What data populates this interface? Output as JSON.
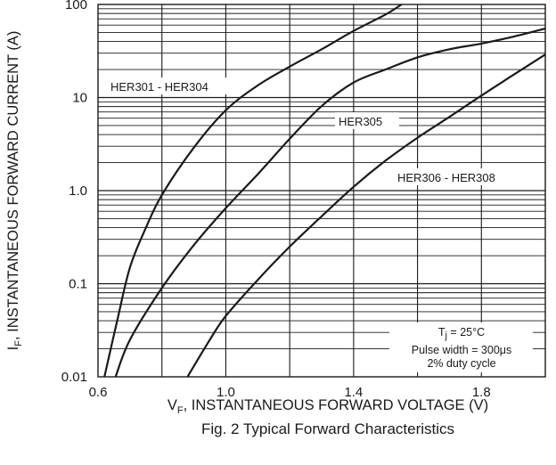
{
  "chart_data": {
    "type": "line",
    "title": "Fig. 2  Typical Forward Characteristics",
    "xlabel": {
      "main": "V",
      "sub": "F",
      "rest": ", INSTANTANEOUS FORWARD VOLTAGE (V)"
    },
    "ylabel": {
      "main": "I",
      "sub": "F",
      "rest": ", INSTANTANEOUS FORWARD CURRENT (A)"
    },
    "xlim": [
      0.6,
      2.0
    ],
    "ylim": [
      0.01,
      100
    ],
    "yscale": "log",
    "grid": true,
    "x_ticks": [
      {
        "value": 0.6,
        "label": "0.6"
      },
      {
        "value": 1.0,
        "label": "1.0"
      },
      {
        "value": 1.4,
        "label": "1.4"
      },
      {
        "value": 1.8,
        "label": "1.8"
      }
    ],
    "y_ticks": [
      {
        "value": 0.01,
        "label": "0.01"
      },
      {
        "value": 0.1,
        "label": "0.1"
      },
      {
        "value": 1,
        "label": "1.0"
      },
      {
        "value": 10,
        "label": "10"
      },
      {
        "value": 100,
        "label": "100"
      }
    ],
    "series": [
      {
        "name": "HER301 - HER304",
        "points": [
          [
            0.62,
            0.01
          ],
          [
            0.66,
            0.04
          ],
          [
            0.7,
            0.15
          ],
          [
            0.75,
            0.4
          ],
          [
            0.8,
            0.9
          ],
          [
            0.9,
            2.9
          ],
          [
            1.0,
            7.3
          ],
          [
            1.1,
            13.5
          ],
          [
            1.2,
            21.5
          ],
          [
            1.3,
            33
          ],
          [
            1.4,
            52
          ],
          [
            1.5,
            78
          ],
          [
            1.55,
            100
          ]
        ]
      },
      {
        "name": "HER305",
        "points": [
          [
            0.655,
            0.01
          ],
          [
            0.7,
            0.025
          ],
          [
            0.8,
            0.09
          ],
          [
            0.9,
            0.26
          ],
          [
            1.0,
            0.65
          ],
          [
            1.1,
            1.5
          ],
          [
            1.2,
            3.6
          ],
          [
            1.3,
            8.1
          ],
          [
            1.4,
            14.5
          ],
          [
            1.5,
            20
          ],
          [
            1.6,
            27
          ],
          [
            1.7,
            33
          ],
          [
            1.8,
            38
          ],
          [
            1.9,
            45
          ],
          [
            2.0,
            55
          ]
        ]
      },
      {
        "name": "HER306 - HER308",
        "points": [
          [
            0.88,
            0.01
          ],
          [
            0.95,
            0.025
          ],
          [
            1.0,
            0.045
          ],
          [
            1.1,
            0.11
          ],
          [
            1.2,
            0.25
          ],
          [
            1.3,
            0.53
          ],
          [
            1.4,
            1.1
          ],
          [
            1.5,
            2.1
          ],
          [
            1.6,
            3.7
          ],
          [
            1.7,
            6.2
          ],
          [
            1.8,
            10.5
          ],
          [
            1.9,
            17.5
          ],
          [
            2.0,
            29
          ]
        ]
      }
    ],
    "annotations": {
      "temp": {
        "main": "T",
        "sub": "j",
        "rest": " = 25°C"
      },
      "pulse": "Pulse width = 300μs",
      "duty": "2% duty cycle"
    }
  }
}
